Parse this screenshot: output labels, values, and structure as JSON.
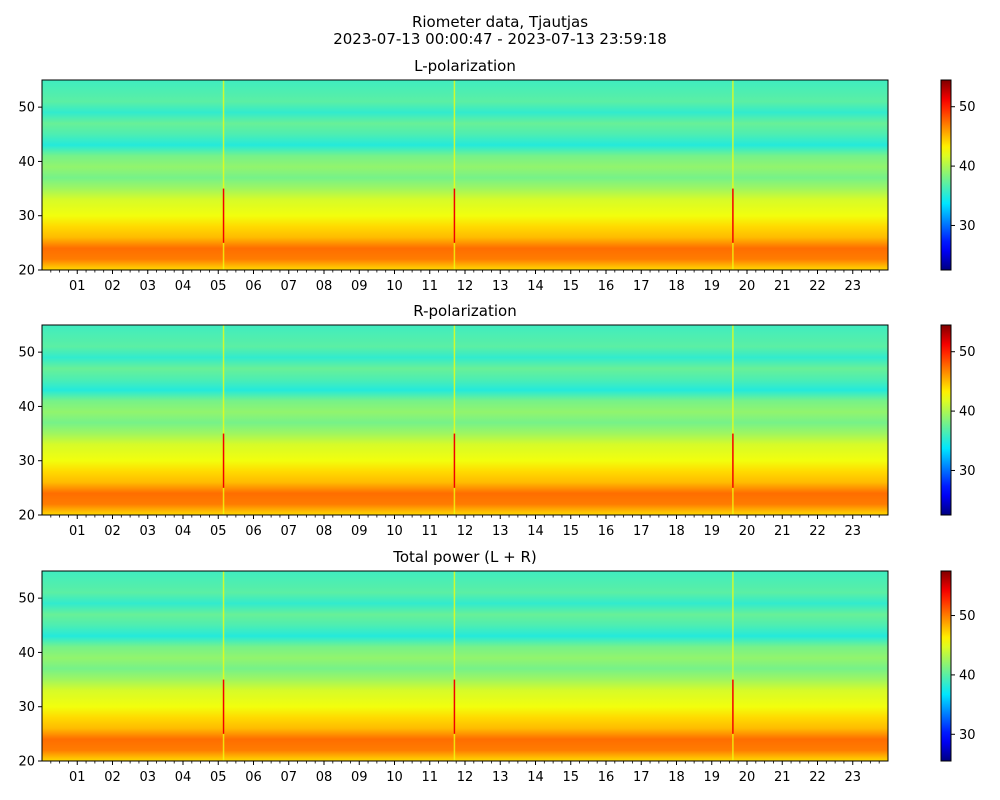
{
  "figure": {
    "title_line1": "Riometer data, Tjautjas",
    "title_line2": "2023-07-13 00:00:47 - 2023-07-13 23:59:18"
  },
  "chart_data": [
    {
      "type": "heatmap",
      "title": "L-polarization",
      "x_ticks": [
        "01",
        "02",
        "03",
        "04",
        "05",
        "06",
        "07",
        "08",
        "09",
        "10",
        "11",
        "12",
        "13",
        "14",
        "15",
        "16",
        "17",
        "18",
        "19",
        "20",
        "21",
        "22",
        "23"
      ],
      "x_range_hours": [
        0,
        24
      ],
      "y_ticks": [
        20,
        30,
        40,
        50
      ],
      "ylim": [
        20,
        55
      ],
      "colorbar": {
        "ticks": [
          30,
          40,
          50
        ],
        "range": [
          22.5,
          54.5
        ],
        "colormap": "jet"
      },
      "band_profile": [
        {
          "y": 20,
          "value": 44
        },
        {
          "y": 22,
          "value": 47
        },
        {
          "y": 24,
          "value": 47.5
        },
        {
          "y": 26,
          "value": 45
        },
        {
          "y": 28,
          "value": 44
        },
        {
          "y": 30,
          "value": 42.5
        },
        {
          "y": 33,
          "value": 41.5
        },
        {
          "y": 35,
          "value": 39.5
        },
        {
          "y": 37,
          "value": 38
        },
        {
          "y": 39,
          "value": 39
        },
        {
          "y": 41,
          "value": 38
        },
        {
          "y": 43,
          "value": 35
        },
        {
          "y": 45,
          "value": 36.5
        },
        {
          "y": 47,
          "value": 37.5
        },
        {
          "y": 49,
          "value": 35.5
        },
        {
          "y": 51,
          "value": 37
        },
        {
          "y": 53,
          "value": 36.5
        },
        {
          "y": 55,
          "value": 36
        }
      ],
      "events_hours": [
        5.15,
        11.7,
        19.6
      ]
    },
    {
      "type": "heatmap",
      "title": "R-polarization",
      "x_ticks": [
        "01",
        "02",
        "03",
        "04",
        "05",
        "06",
        "07",
        "08",
        "09",
        "10",
        "11",
        "12",
        "13",
        "14",
        "15",
        "16",
        "17",
        "18",
        "19",
        "20",
        "21",
        "22",
        "23"
      ],
      "x_range_hours": [
        0,
        24
      ],
      "y_ticks": [
        20,
        30,
        40,
        50
      ],
      "ylim": [
        20,
        55
      ],
      "colorbar": {
        "ticks": [
          30,
          40,
          50
        ],
        "range": [
          22.5,
          54.5
        ],
        "colormap": "jet"
      },
      "band_profile": [
        {
          "y": 20,
          "value": 44
        },
        {
          "y": 22,
          "value": 47
        },
        {
          "y": 24,
          "value": 47.5
        },
        {
          "y": 26,
          "value": 45
        },
        {
          "y": 28,
          "value": 44
        },
        {
          "y": 30,
          "value": 42.5
        },
        {
          "y": 33,
          "value": 41.5
        },
        {
          "y": 35,
          "value": 39.5
        },
        {
          "y": 37,
          "value": 38
        },
        {
          "y": 39,
          "value": 39
        },
        {
          "y": 41,
          "value": 38
        },
        {
          "y": 43,
          "value": 35
        },
        {
          "y": 45,
          "value": 36.5
        },
        {
          "y": 47,
          "value": 37.5
        },
        {
          "y": 49,
          "value": 35.5
        },
        {
          "y": 51,
          "value": 37
        },
        {
          "y": 53,
          "value": 36.5
        },
        {
          "y": 55,
          "value": 36
        }
      ],
      "events_hours": [
        5.15,
        11.7,
        19.6
      ]
    },
    {
      "type": "heatmap",
      "title": "Total power (L + R)",
      "x_ticks": [
        "01",
        "02",
        "03",
        "04",
        "05",
        "06",
        "07",
        "08",
        "09",
        "10",
        "11",
        "12",
        "13",
        "14",
        "15",
        "16",
        "17",
        "18",
        "19",
        "20",
        "21",
        "22",
        "23"
      ],
      "x_range_hours": [
        0,
        24
      ],
      "y_ticks": [
        20,
        30,
        40,
        50
      ],
      "ylim": [
        20,
        55
      ],
      "colorbar": {
        "ticks": [
          30,
          40,
          50
        ],
        "range": [
          25.5,
          57.5
        ],
        "colormap": "jet"
      },
      "band_profile": [
        {
          "y": 20,
          "value": 47
        },
        {
          "y": 22,
          "value": 50
        },
        {
          "y": 24,
          "value": 50.5
        },
        {
          "y": 26,
          "value": 48
        },
        {
          "y": 28,
          "value": 47
        },
        {
          "y": 30,
          "value": 45.5
        },
        {
          "y": 33,
          "value": 44.5
        },
        {
          "y": 35,
          "value": 42.5
        },
        {
          "y": 37,
          "value": 41
        },
        {
          "y": 39,
          "value": 42
        },
        {
          "y": 41,
          "value": 41
        },
        {
          "y": 43,
          "value": 38
        },
        {
          "y": 45,
          "value": 39.5
        },
        {
          "y": 47,
          "value": 40.5
        },
        {
          "y": 49,
          "value": 38.5
        },
        {
          "y": 51,
          "value": 40
        },
        {
          "y": 53,
          "value": 39.5
        },
        {
          "y": 55,
          "value": 39
        }
      ],
      "events_hours": [
        5.15,
        11.7,
        19.6
      ]
    }
  ]
}
